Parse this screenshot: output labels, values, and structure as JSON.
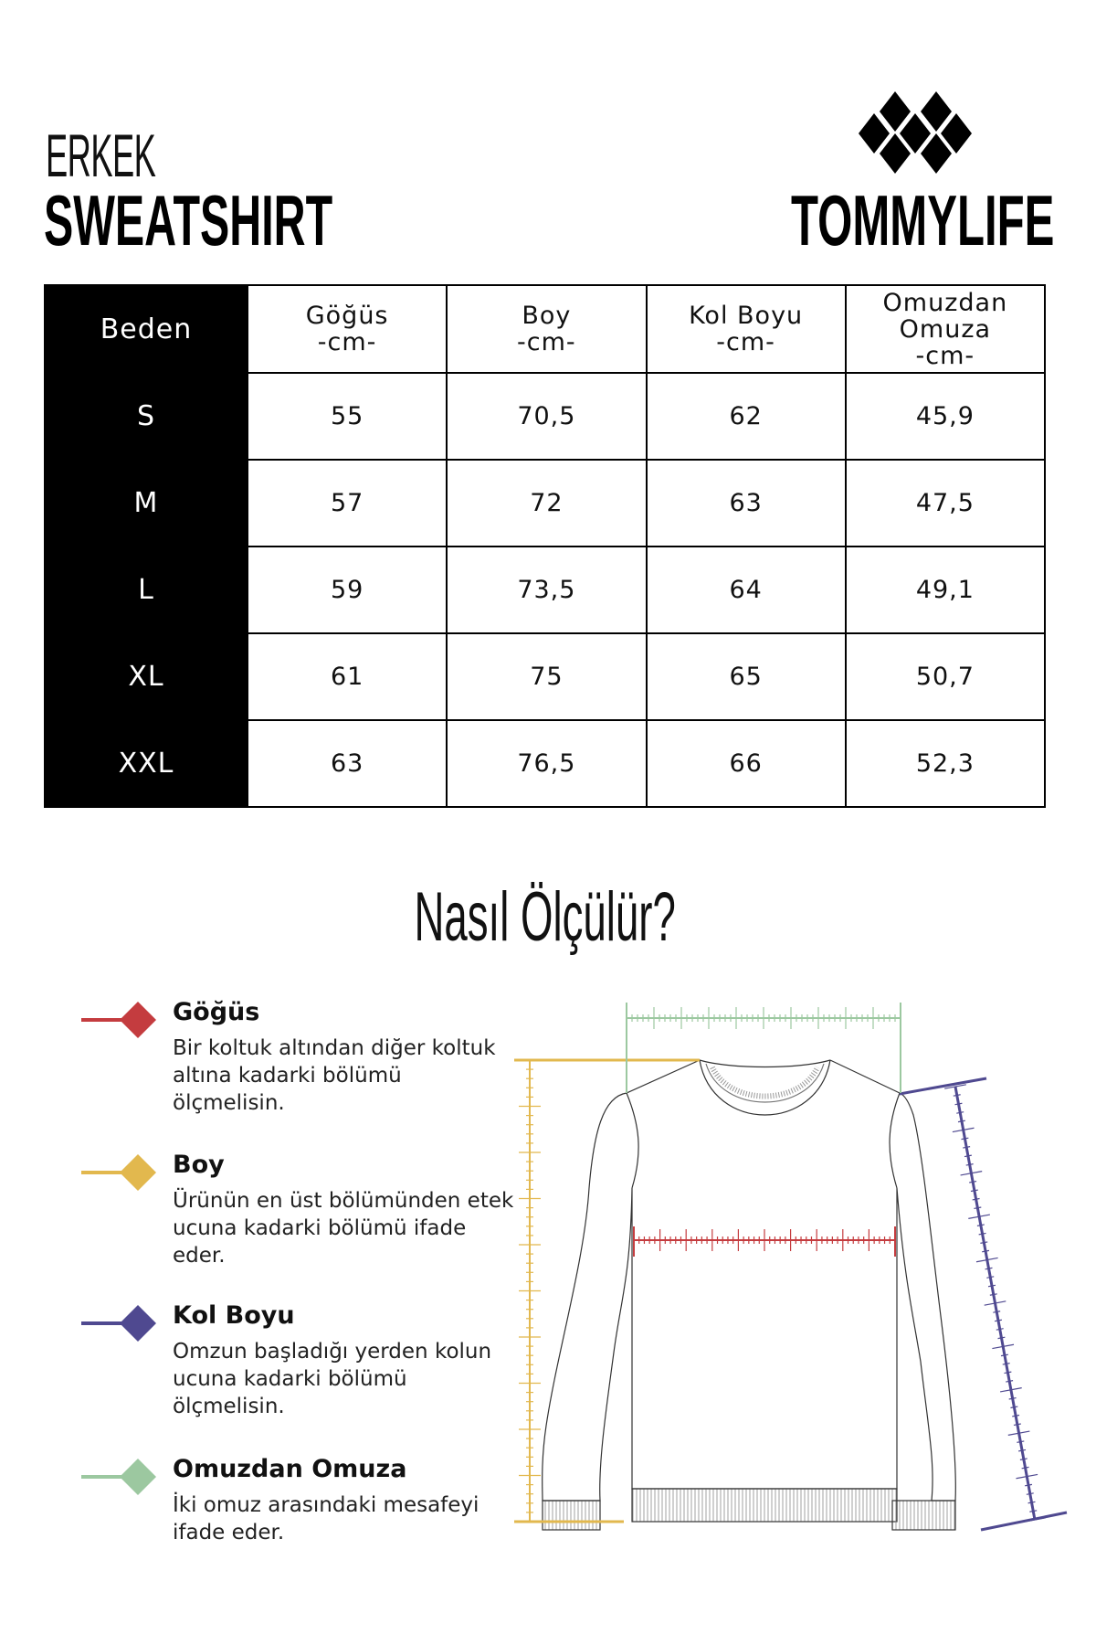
{
  "header": {
    "category": "ERKEK",
    "product": "SWEATSHIRT",
    "brand": "TOMMYLIFE",
    "logo": "tommylife-diamond-logo"
  },
  "size_table": {
    "columns": [
      {
        "label": "Beden",
        "unit": ""
      },
      {
        "label": "Göğüs",
        "unit": "-cm-"
      },
      {
        "label": "Boy",
        "unit": "-cm-"
      },
      {
        "label": "Kol Boyu",
        "unit": "-cm-"
      },
      {
        "label": "Omuzdan Omuza",
        "unit": "-cm-"
      }
    ],
    "rows": [
      [
        "S",
        "55",
        "70,5",
        "62",
        "45,9"
      ],
      [
        "M",
        "57",
        "72",
        "63",
        "47,5"
      ],
      [
        "L",
        "59",
        "73,5",
        "64",
        "49,1"
      ],
      [
        "XL",
        "61",
        "75",
        "65",
        "50,7"
      ],
      [
        "XXL",
        "63",
        "76,5",
        "66",
        "52,3"
      ]
    ]
  },
  "howto": {
    "title": "Nasıl Ölçülür?",
    "items": [
      {
        "title": "Göğüs",
        "text": "Bir koltuk altından diğer koltuk altına kadarki bölümü ölçmelisin.",
        "color": "#c43c3f"
      },
      {
        "title": "Boy",
        "text": "Ürünün en üst bölümünden etek ucuna kadarki bölümü ifade eder.",
        "color": "#e2b84e"
      },
      {
        "title": "Kol Boyu",
        "text": "Omzun başladığı yerden kolun ucuna kadarki bölümü ölçmelisin.",
        "color": "#4f4990"
      },
      {
        "title": "Omuzdan Omuza",
        "text": "İki omuz arasındaki mesafeyi ifade eder.",
        "color": "#9cc8a0"
      }
    ]
  }
}
